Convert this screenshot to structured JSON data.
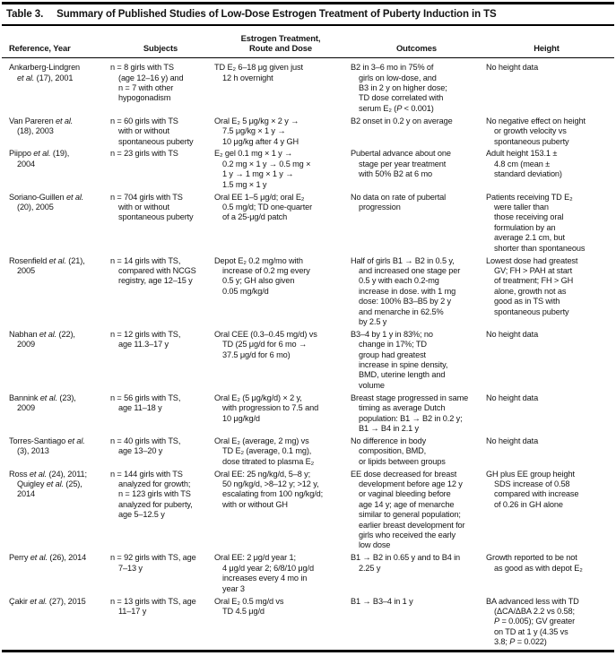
{
  "title": {
    "label": "Table 3.",
    "text": "Summary of Published Studies of Low-Dose Estrogen Treatment of Puberty Induction in TS"
  },
  "table": {
    "columns": [
      {
        "key": "reference",
        "label": "Reference, Year"
      },
      {
        "key": "subjects",
        "label": "Subjects"
      },
      {
        "key": "treatment",
        "label": "Estrogen Treatment,\nRoute and Dose"
      },
      {
        "key": "outcomes",
        "label": "Outcomes"
      },
      {
        "key": "height",
        "label": "Height"
      }
    ],
    "rows": [
      {
        "reference": "Ankarberg-Lindgren\net al. (17), 2001",
        "subjects": "n = 8 girls with TS\n(age 12–16 y) and\nn = 7 with other\nhypogonadism",
        "treatment": "TD E₂ 6–18 μg given just\n12 h overnight",
        "outcomes": "B2 in 3–6 mo in 75% of\ngirls on low-dose, and\nB3 in 2 y on higher dose;\nTD dose correlated with\nserum E₂ (P < 0.001)",
        "height": "No height data"
      },
      {
        "reference": "Van Pareren et al.\n(18), 2003",
        "subjects": "n = 60 girls with TS\nwith or without\nspontaneous puberty",
        "treatment": "Oral E₂ 5 μg/kg × 2 y →\n7.5 μg/kg × 1 y →\n10 μg/kg after 4 y GH",
        "outcomes": "B2 onset in 0.2 y on average",
        "height": "No negative effect on height\nor growth velocity vs\nspontaneous puberty"
      },
      {
        "reference": "Piippo et al. (19),\n2004",
        "subjects": "n = 23 girls with TS",
        "treatment": "E₂ gel 0.1 mg × 1 y →\n0.2 mg × 1 y → 0.5 mg ×\n1 y → 1 mg × 1 y →\n1.5 mg × 1 y",
        "outcomes": "Pubertal advance about one\nstage per year treatment\nwith 50% B2 at 6 mo",
        "height": "Adult height 153.1 ±\n4.8 cm (mean ±\nstandard deviation)"
      },
      {
        "reference": "Soriano-Guillen et al.\n(20), 2005",
        "subjects": "n = 704 girls with TS\nwith or without\nspontaneous puberty",
        "treatment": "Oral EE 1–5 μg/d; oral E₂\n0.5 mg/d; TD one-quarter\nof a 25-μg/d patch",
        "outcomes": "No data on rate of pubertal\nprogression",
        "height": "Patients receiving TD E₂\nwere taller than\nthose receiving oral\nformulation by an\naverage 2.1 cm, but\nshorter than spontaneous"
      },
      {
        "reference": "Rosenfield et al. (21),\n2005",
        "subjects": "n = 14 girls with TS,\ncompared with NCGS\nregistry, age 12–15 y",
        "treatment": "Depot E₂ 0.2 mg/mo with\nincrease of 0.2 mg every\n0.5 y; GH also given\n0.05 mg/kg/d",
        "outcomes": "Half of girls B1 → B2 in 0.5 y,\nand increased one stage per\n0.5 y with each 0.2-mg\nincrease in dose. with 1 mg\ndose: 100% B3–B5 by 2 y\nand menarche in 62.5%\nby 2.5 y",
        "height": "Lowest dose had greatest\nGV; FH > PAH at start\nof treatment; FH > GH\nalone, growth not as\ngood as in TS with\nspontaneous puberty"
      },
      {
        "reference": "Nabhan et al. (22),\n2009",
        "subjects": "n = 12 girls with TS,\nage 11.3–17 y",
        "treatment": "Oral CEE (0.3–0.45 mg/d) vs\nTD (25 μg/d for 6 mo →\n37.5 μg/d for 6 mo)",
        "outcomes": "B3–4 by 1 y in 83%; no\nchange in 17%; TD\ngroup had greatest\nincrease in spine density,\nBMD, uterine length and\nvolume",
        "height": "No height data"
      },
      {
        "reference": "Bannink et al. (23),\n2009",
        "subjects": "n = 56 girls with TS,\nage 11–18 y",
        "treatment": "Oral E₂ (5 μg/kg/d) × 2 y,\nwith progression to 7.5 and\n10 μg/kg/d",
        "outcomes": "Breast stage progressed in same\ntiming as average Dutch\npopulation: B1 → B2 in 0.2 y;\nB1 → B4 in 2.1 y",
        "height": "No height data"
      },
      {
        "reference": "Torres-Santiago et al.\n(3), 2013",
        "subjects": "n = 40 girls with TS,\nage 13–20 y",
        "treatment": "Oral E₂ (average, 2 mg) vs\nTD E₂ (average, 0.1 mg),\ndose titrated to plasma E₂",
        "outcomes": "No difference in body\ncomposition, BMD,\nor lipids between groups",
        "height": "No height data"
      },
      {
        "reference": "Ross et al. (24), 2011;\nQuigley et al. (25),\n2014",
        "subjects": "n = 144 girls with TS\nanalyzed for growth;\nn = 123 girls with TS\nanalyzed for puberty,\nage 5–12.5 y",
        "treatment": "Oral EE: 25 ng/kg/d, 5–8 y;\n50 ng/kg/d, >8–12 y; >12 y,\nescalating from 100 ng/kg/d;\nwith or without GH",
        "outcomes": "EE dose decreased for breast\ndevelopment before age 12 y\nor vaginal bleeding before\nage 14 y; age of menarche\nsimilar to general population;\nearlier breast development for\ngirls who received the early\nlow dose",
        "height": "GH plus EE group height\nSDS increase of 0.58\ncompared with increase\nof 0.26 in GH alone"
      },
      {
        "reference": "Perry et al. (26), 2014",
        "subjects": "n = 92 girls with TS, age\n7–13 y",
        "treatment": "Oral EE: 2 μg/d year 1;\n4 μg/d year 2; 6/8/10 μg/d\nincreases every 4 mo in\nyear 3",
        "outcomes": "B1 → B2 in 0.65 y and to B4 in\n2.25 y",
        "height": "Growth reported to be not\nas good as with depot E₂"
      },
      {
        "reference": "Çakir et al. (27), 2015",
        "subjects": "n = 13 girls with TS, age\n11–17 y",
        "treatment": "Oral E₂ 0.5 mg/d vs\nTD 4.5 μg/d",
        "outcomes": "B1 → B3–4 in 1 y",
        "height": "BA advanced less with TD\n(ΔCA/ΔBA 2.2 vs 0.58;\nP = 0.005); GV greater\non TD at 1 y (4.35 vs\n3.8; P = 0.022)"
      }
    ]
  }
}
